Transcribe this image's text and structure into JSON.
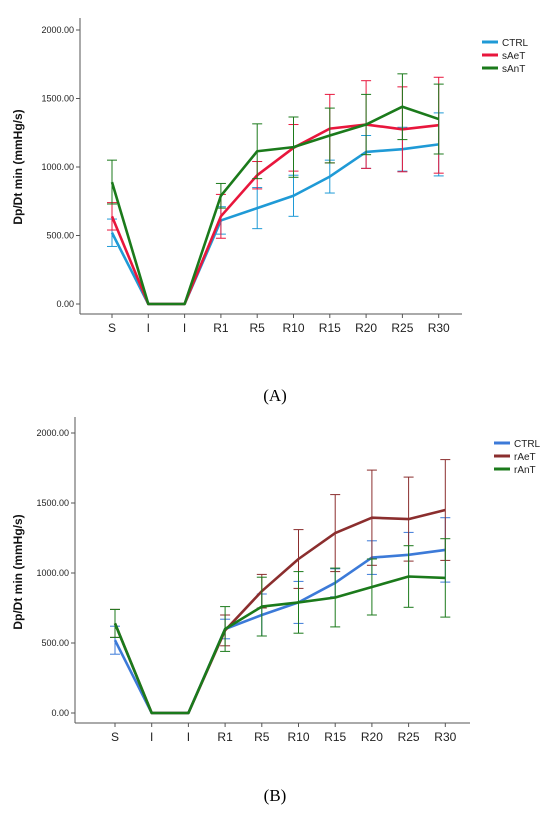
{
  "chart_data": [
    {
      "type": "line",
      "ylabel": "Dp/Dt min (mmHg/s)",
      "xlabel": "",
      "categories": [
        "S",
        "I",
        "I",
        "R1",
        "R5",
        "R10",
        "R15",
        "R20",
        "R25",
        "R30"
      ],
      "yticks": [
        "0.00",
        "500.00",
        "1000.00",
        "1500.00",
        "2000.00"
      ],
      "ylim": [
        0,
        2000
      ],
      "legend_position": "top-right",
      "error_bars": true,
      "series": [
        {
          "name": "CTRL",
          "color": "#1f9ad6",
          "values": [
            520,
            0,
            0,
            610,
            700,
            790,
            930,
            1110,
            1130,
            1165
          ],
          "err": [
            100,
            0,
            0,
            100,
            150,
            150,
            120,
            120,
            160,
            230
          ]
        },
        {
          "name": "sAeT",
          "color": "#e8163c",
          "values": [
            640,
            0,
            0,
            640,
            940,
            1140,
            1280,
            1310,
            1275,
            1305
          ],
          "err": [
            100,
            0,
            0,
            160,
            100,
            170,
            250,
            320,
            310,
            350
          ]
        },
        {
          "name": "sAnT",
          "color": "#1b7a1b",
          "values": [
            890,
            0,
            0,
            790,
            1115,
            1145,
            1230,
            1310,
            1440,
            1350
          ],
          "err": [
            160,
            0,
            0,
            90,
            200,
            220,
            200,
            220,
            240,
            255
          ]
        }
      ]
    },
    {
      "type": "line",
      "ylabel": "Dp/Dt min (mmHg/s)",
      "xlabel": "",
      "categories": [
        "S",
        "I",
        "I",
        "R1",
        "R5",
        "R10",
        "R15",
        "R20",
        "R25",
        "R30"
      ],
      "yticks": [
        "0.00",
        "500.00",
        "1000.00",
        "1500.00",
        "2000.00"
      ],
      "ylim": [
        0,
        2000
      ],
      "legend_position": "top-right",
      "error_bars": true,
      "series": [
        {
          "name": "CTRL",
          "color": "#3c7ad8",
          "values": [
            520,
            0,
            0,
            600,
            700,
            790,
            930,
            1110,
            1130,
            1165
          ],
          "err": [
            100,
            0,
            0,
            70,
            150,
            150,
            100,
            120,
            160,
            230
          ]
        },
        {
          "name": "rAeT",
          "color": "#8b2e2e",
          "values": [
            640,
            0,
            0,
            590,
            870,
            1100,
            1285,
            1395,
            1385,
            1450
          ],
          "err": [
            100,
            0,
            0,
            110,
            120,
            210,
            275,
            340,
            300,
            360
          ]
        },
        {
          "name": "rAnT",
          "color": "#1b7a1b",
          "values": [
            640,
            0,
            0,
            600,
            760,
            790,
            825,
            900,
            975,
            965
          ],
          "err": [
            100,
            0,
            0,
            160,
            210,
            220,
            210,
            200,
            220,
            280
          ]
        }
      ]
    }
  ],
  "captions": [
    "(A)",
    "(B)"
  ]
}
